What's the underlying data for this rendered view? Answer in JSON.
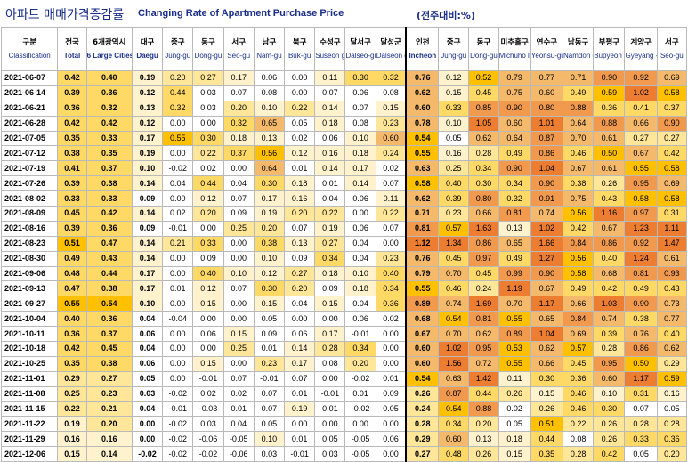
{
  "header": {
    "title_kr": "아파트 매매가격증감률",
    "title_en": "Changing Rate of Apartment Purchase Price",
    "unit": "(전주대비:%)"
  },
  "columns": [
    {
      "kr": "구분",
      "en": "Classification",
      "bold": false
    },
    {
      "kr": "전국",
      "en": "Total",
      "bold": true
    },
    {
      "kr": "6개광역시",
      "en": "6 Large Cities",
      "bold": true
    },
    {
      "kr": "대구",
      "en": "Daegu",
      "bold": true
    },
    {
      "kr": "중구",
      "en": "Jung-gu",
      "bold": false
    },
    {
      "kr": "동구",
      "en": "Dong-gu",
      "bold": false
    },
    {
      "kr": "서구",
      "en": "Seo-gu",
      "bold": false
    },
    {
      "kr": "남구",
      "en": "Nam-gu",
      "bold": false
    },
    {
      "kr": "북구",
      "en": "Buk-gu",
      "bold": false
    },
    {
      "kr": "수성구",
      "en": "Suseon g-gu",
      "bold": false
    },
    {
      "kr": "달서구",
      "en": "Dalseo-gu",
      "bold": false
    },
    {
      "kr": "달성군",
      "en": "Dalseon g-gun",
      "bold": false
    },
    {
      "kr": "인천",
      "en": "Incheon",
      "bold": true
    },
    {
      "kr": "중구",
      "en": "Jung-gu",
      "bold": false
    },
    {
      "kr": "동구",
      "en": "Dong-gu",
      "bold": false
    },
    {
      "kr": "미추홀구",
      "en": "Michuho l-gu",
      "bold": false
    },
    {
      "kr": "연수구",
      "en": "Yeonsu-gu",
      "bold": false
    },
    {
      "kr": "남동구",
      "en": "Namdon g-gu",
      "bold": false
    },
    {
      "kr": "부평구",
      "en": "Bupyeon g-gu",
      "bold": false
    },
    {
      "kr": "계양구",
      "en": "Gyeyang -gu",
      "bold": false
    },
    {
      "kr": "서구",
      "en": "Seo-gu",
      "bold": false
    }
  ],
  "rows": [
    {
      "date": "2021-06-07",
      "vals": [
        "0.42",
        "0.40",
        "0.19",
        "0.20",
        "0.27",
        "0.17",
        "0.06",
        "0.00",
        "0.11",
        "0.30",
        "0.32",
        "0.76",
        "0.12",
        "0.52",
        "0.79",
        "0.77",
        "0.71",
        "0.90",
        "0.92",
        "0.69"
      ]
    },
    {
      "date": "2021-06-14",
      "vals": [
        "0.39",
        "0.36",
        "0.12",
        "0.44",
        "0.03",
        "0.07",
        "0.08",
        "0.00",
        "0.07",
        "0.06",
        "0.08",
        "0.62",
        "0.15",
        "0.45",
        "0.75",
        "0.60",
        "0.49",
        "0.59",
        "1.02",
        "0.58"
      ]
    },
    {
      "date": "2021-06-21",
      "vals": [
        "0.36",
        "0.32",
        "0.13",
        "0.32",
        "0.03",
        "0.20",
        "0.10",
        "0.22",
        "0.14",
        "0.07",
        "0.15",
        "0.60",
        "0.33",
        "0.85",
        "0.90",
        "0.80",
        "0.88",
        "0.36",
        "0.41",
        "0.37"
      ]
    },
    {
      "date": "2021-06-28",
      "vals": [
        "0.42",
        "0.42",
        "0.12",
        "0.00",
        "0.00",
        "0.32",
        "0.65",
        "0.05",
        "0.18",
        "0.08",
        "0.23",
        "0.78",
        "0.10",
        "1.05",
        "0.60",
        "1.01",
        "0.64",
        "0.88",
        "0.66",
        "0.90"
      ]
    },
    {
      "date": "2021-07-05",
      "vals": [
        "0.35",
        "0.33",
        "0.17",
        "0.55",
        "0.30",
        "0.18",
        "0.13",
        "0.02",
        "0.06",
        "0.10",
        "0.60",
        "0.54",
        "0.05",
        "0.62",
        "0.64",
        "0.87",
        "0.70",
        "0.61",
        "0.27",
        "0.27"
      ]
    },
    {
      "date": "2021-07-12",
      "vals": [
        "0.38",
        "0.35",
        "0.19",
        "0.00",
        "0.22",
        "0.37",
        "0.56",
        "0.12",
        "0.16",
        "0.18",
        "0.24",
        "0.55",
        "0.16",
        "0.28",
        "0.49",
        "0.86",
        "0.46",
        "0.50",
        "0.67",
        "0.42"
      ]
    },
    {
      "date": "2021-07-19",
      "vals": [
        "0.41",
        "0.37",
        "0.10",
        "-0.02",
        "0.02",
        "0.00",
        "0.64",
        "0.01",
        "0.14",
        "0.17",
        "0.02",
        "0.63",
        "0.25",
        "0.34",
        "0.90",
        "1.04",
        "0.67",
        "0.61",
        "0.55",
        "0.58"
      ]
    },
    {
      "date": "2021-07-26",
      "vals": [
        "0.39",
        "0.38",
        "0.14",
        "0.04",
        "0.44",
        "0.04",
        "0.30",
        "0.18",
        "0.01",
        "0.14",
        "0.07",
        "0.58",
        "0.40",
        "0.30",
        "0.34",
        "0.90",
        "0.38",
        "0.26",
        "0.95",
        "0.69"
      ]
    },
    {
      "date": "2021-08-02",
      "vals": [
        "0.33",
        "0.33",
        "0.09",
        "0.00",
        "0.12",
        "0.07",
        "0.17",
        "0.16",
        "0.04",
        "0.06",
        "0.11",
        "0.62",
        "0.39",
        "0.80",
        "0.32",
        "0.91",
        "0.75",
        "0.43",
        "0.58",
        "0.58"
      ]
    },
    {
      "date": "2021-08-09",
      "vals": [
        "0.45",
        "0.42",
        "0.14",
        "0.02",
        "0.20",
        "0.09",
        "0.19",
        "0.20",
        "0.22",
        "0.00",
        "0.22",
        "0.71",
        "0.23",
        "0.66",
        "0.81",
        "0.74",
        "0.56",
        "1.16",
        "0.97",
        "0.31"
      ]
    },
    {
      "date": "2021-08-16",
      "vals": [
        "0.39",
        "0.36",
        "0.09",
        "-0.01",
        "0.00",
        "0.25",
        "0.20",
        "0.07",
        "0.19",
        "0.06",
        "0.07",
        "0.81",
        "0.57",
        "1.63",
        "0.13",
        "1.02",
        "0.42",
        "0.67",
        "1.23",
        "1.11"
      ]
    },
    {
      "date": "2021-08-23",
      "vals": [
        "0.51",
        "0.47",
        "0.14",
        "0.21",
        "0.33",
        "0.00",
        "0.38",
        "0.13",
        "0.27",
        "0.04",
        "0.00",
        "1.12",
        "1.34",
        "0.86",
        "0.65",
        "1.66",
        "0.84",
        "0.86",
        "0.92",
        "1.47"
      ]
    },
    {
      "date": "2021-08-30",
      "vals": [
        "0.49",
        "0.43",
        "0.14",
        "0.00",
        "0.09",
        "0.00",
        "0.10",
        "0.09",
        "0.34",
        "0.04",
        "0.23",
        "0.76",
        "0.45",
        "0.97",
        "0.49",
        "1.27",
        "0.56",
        "0.40",
        "1.24",
        "0.61"
      ]
    },
    {
      "date": "2021-09-06",
      "vals": [
        "0.48",
        "0.44",
        "0.17",
        "0.00",
        "0.40",
        "0.10",
        "0.12",
        "0.27",
        "0.18",
        "0.10",
        "0.40",
        "0.79",
        "0.70",
        "0.45",
        "0.99",
        "0.90",
        "0.58",
        "0.68",
        "0.81",
        "0.93"
      ]
    },
    {
      "date": "2021-09-13",
      "vals": [
        "0.47",
        "0.38",
        "0.17",
        "0.01",
        "0.12",
        "0.07",
        "0.30",
        "0.20",
        "0.09",
        "0.18",
        "0.34",
        "0.55",
        "0.46",
        "0.24",
        "1.19",
        "0.67",
        "0.49",
        "0.42",
        "0.49",
        "0.43"
      ]
    },
    {
      "date": "2021-09-27",
      "vals": [
        "0.55",
        "0.54",
        "0.10",
        "0.00",
        "0.15",
        "0.00",
        "0.15",
        "0.04",
        "0.15",
        "0.04",
        "0.36",
        "0.89",
        "0.74",
        "1.69",
        "0.70",
        "1.17",
        "0.66",
        "1.03",
        "0.90",
        "0.73"
      ]
    },
    {
      "date": "2021-10-04",
      "vals": [
        "0.40",
        "0.36",
        "0.04",
        "-0.04",
        "0.00",
        "0.00",
        "0.05",
        "0.00",
        "0.00",
        "0.06",
        "0.02",
        "0.68",
        "0.54",
        "0.81",
        "0.55",
        "0.65",
        "0.84",
        "0.74",
        "0.38",
        "0.77"
      ]
    },
    {
      "date": "2021-10-11",
      "vals": [
        "0.36",
        "0.37",
        "0.06",
        "0.00",
        "0.06",
        "0.15",
        "0.09",
        "0.06",
        "0.17",
        "-0.01",
        "0.00",
        "0.67",
        "0.70",
        "0.62",
        "0.89",
        "1.04",
        "0.69",
        "0.39",
        "0.76",
        "0.40"
      ]
    },
    {
      "date": "2021-10-18",
      "vals": [
        "0.42",
        "0.45",
        "0.04",
        "0.00",
        "0.00",
        "0.25",
        "0.01",
        "0.14",
        "0.28",
        "0.34",
        "0.00",
        "0.60",
        "1.02",
        "0.95",
        "0.53",
        "0.62",
        "0.57",
        "0.28",
        "0.86",
        "0.62"
      ]
    },
    {
      "date": "2021-10-25",
      "vals": [
        "0.35",
        "0.38",
        "0.06",
        "0.00",
        "0.15",
        "0.00",
        "0.23",
        "0.17",
        "0.08",
        "0.20",
        "0.00",
        "0.60",
        "1.56",
        "0.72",
        "0.55",
        "0.66",
        "0.45",
        "0.95",
        "0.50",
        "0.29"
      ]
    },
    {
      "date": "2021-11-01",
      "vals": [
        "0.29",
        "0.27",
        "0.05",
        "0.00",
        "-0.01",
        "0.07",
        "-0.01",
        "0.07",
        "0.00",
        "-0.02",
        "0.01",
        "0.54",
        "0.63",
        "1.42",
        "0.11",
        "0.30",
        "0.36",
        "0.60",
        "1.17",
        "0.59"
      ]
    },
    {
      "date": "2021-11-08",
      "vals": [
        "0.25",
        "0.23",
        "0.03",
        "-0.02",
        "0.02",
        "0.02",
        "0.07",
        "0.01",
        "-0.01",
        "0.01",
        "0.09",
        "0.26",
        "0.87",
        "0.44",
        "0.26",
        "0.15",
        "0.46",
        "0.10",
        "0.31",
        "0.16"
      ]
    },
    {
      "date": "2021-11-15",
      "vals": [
        "0.22",
        "0.21",
        "0.04",
        "-0.01",
        "-0.03",
        "0.01",
        "0.07",
        "0.19",
        "0.01",
        "-0.02",
        "0.05",
        "0.24",
        "0.54",
        "0.88",
        "0.02",
        "0.26",
        "0.46",
        "0.30",
        "0.07",
        "0.05"
      ]
    },
    {
      "date": "2021-11-22",
      "vals": [
        "0.19",
        "0.20",
        "0.00",
        "-0.02",
        "0.03",
        "0.04",
        "0.05",
        "0.00",
        "0.00",
        "0.00",
        "0.00",
        "0.28",
        "0.34",
        "0.20",
        "0.05",
        "0.51",
        "0.22",
        "0.26",
        "0.28",
        "0.28"
      ]
    },
    {
      "date": "2021-11-29",
      "vals": [
        "0.16",
        "0.16",
        "0.00",
        "-0.02",
        "-0.06",
        "-0.05",
        "0.10",
        "0.01",
        "0.05",
        "-0.05",
        "0.06",
        "0.29",
        "0.60",
        "0.13",
        "0.18",
        "0.44",
        "0.08",
        "0.26",
        "0.33",
        "0.36"
      ]
    },
    {
      "date": "2021-12-06",
      "vals": [
        "0.15",
        "0.14",
        "-0.02",
        "-0.02",
        "-0.02",
        "-0.06",
        "0.03",
        "-0.01",
        "0.03",
        "-0.05",
        "0.00",
        "0.27",
        "0.48",
        "0.26",
        "0.15",
        "0.35",
        "0.28",
        "0.42",
        "0.05",
        "0.20"
      ]
    }
  ],
  "colors": {
    "title": "#1a2e8a",
    "grid": "#b9b9b9",
    "scale": [
      "#ffffff",
      "#fff2cc",
      "#ffe699",
      "#ffd966",
      "#ffc000",
      "#f4b183",
      "#f8cbad",
      "#ed7d31"
    ]
  }
}
